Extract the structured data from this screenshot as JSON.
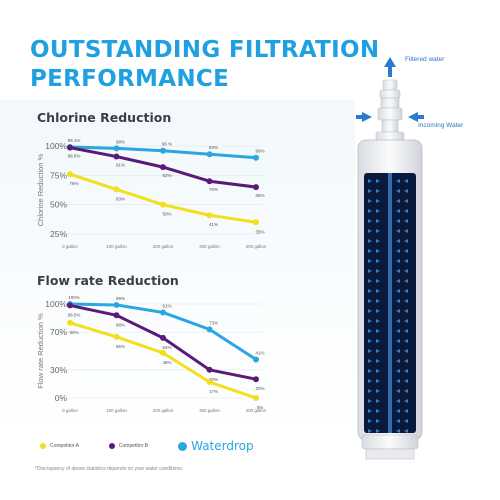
{
  "headline": "OUTSTANDING FILTRATION PERFORMANCE",
  "labels": {
    "filtered_water": "Filtered water",
    "incoming_water": "Incoming Water"
  },
  "legend": {
    "competitor_a": "Competitor A",
    "competitor_b": "Competitor B",
    "brand": "Waterdrop"
  },
  "disclaimer": "*Discrepancy of above statistics depends on your water conditions.",
  "colors": {
    "competitor_a": "#f2df1e",
    "competitor_b": "#5a1a78",
    "brand": "#2aa7e0",
    "headline": "#1fa0e0",
    "filter_core": "#0b1a3a"
  },
  "chart_data": [
    {
      "type": "line",
      "title": "Chlorine Reduction",
      "ylabel": "Chlorine Reduction %",
      "categories": [
        "0 gallon",
        "100 gallon",
        "200 gallon",
        "300 gallon",
        "400 gallon"
      ],
      "yticks": [
        "100%",
        "75%",
        "50%",
        "25%"
      ],
      "ylim": [
        25,
        100
      ],
      "series": [
        {
          "key": "brand",
          "values": [
            99.1,
            98,
            96,
            93,
            90
          ],
          "labels": [
            "99.1%",
            "98%",
            "96 %",
            "93%",
            "90%"
          ]
        },
        {
          "key": "competitor_b",
          "values": [
            98.6,
            91,
            82,
            70,
            65
          ],
          "labels": [
            "98.6%",
            "91%",
            "82%",
            "70%",
            "65%"
          ]
        },
        {
          "key": "competitor_a",
          "values": [
            76,
            63,
            50,
            41,
            35
          ],
          "labels": [
            "76%",
            "63%",
            "50%",
            "41%",
            "35%"
          ]
        }
      ]
    },
    {
      "type": "line",
      "title": "Flow rate Reduction",
      "ylabel": "Flow rate Reduction %",
      "categories": [
        "0 gallon",
        "100 gallon",
        "200 gallon",
        "300 gallon",
        "400 gallon"
      ],
      "yticks": [
        "100%",
        "70%",
        "30%",
        "0%"
      ],
      "ylim": [
        0,
        100
      ],
      "series": [
        {
          "key": "brand",
          "values": [
            100,
            99,
            91,
            73,
            41
          ],
          "labels": [
            "100%",
            "99%",
            "91%",
            "73%",
            "41%"
          ]
        },
        {
          "key": "competitor_b",
          "values": [
            98.5,
            88,
            64,
            30,
            20
          ],
          "labels": [
            "98.5%",
            "88%",
            "64%",
            "30%",
            "20%"
          ]
        },
        {
          "key": "competitor_a",
          "values": [
            80,
            65,
            48,
            17,
            0
          ],
          "labels": [
            "80%",
            "65%",
            "48%",
            "17%",
            "0%"
          ]
        }
      ]
    }
  ]
}
